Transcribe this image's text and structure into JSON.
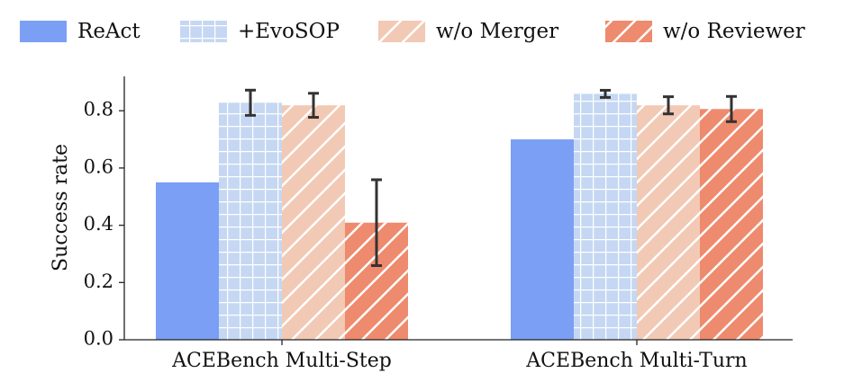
{
  "chart_data": {
    "type": "bar",
    "y_label": "Success rate",
    "categories": [
      "ACEBench Multi-Step",
      "ACEBench Multi-Turn"
    ],
    "series": [
      {
        "name": "ReAct",
        "color": "#7b9ff5",
        "values": [
          0.55,
          0.7
        ]
      },
      {
        "name": "+EvoSOP",
        "color": "#c5d7f2",
        "hatch": "grid",
        "values": [
          0.828,
          0.859
        ],
        "errors": [
          0.044,
          0.0125
        ]
      },
      {
        "name": "w/o Merger",
        "color": "#f2c9b4",
        "hatch": "diagonal",
        "values": [
          0.819,
          0.819
        ],
        "errors": [
          0.042,
          0.03
        ]
      },
      {
        "name": "w/o Reviewer",
        "color": "#ee8a6d",
        "hatch": "diagonal",
        "values": [
          0.409,
          0.806
        ],
        "errors": [
          0.15,
          0.044
        ]
      }
    ],
    "ylim": [
      0,
      0.92
    ],
    "yticks": [
      {
        "value": 0,
        "label": "0.0"
      },
      0.2,
      0.4,
      0.6,
      0.8
    ],
    "grid": false
  }
}
